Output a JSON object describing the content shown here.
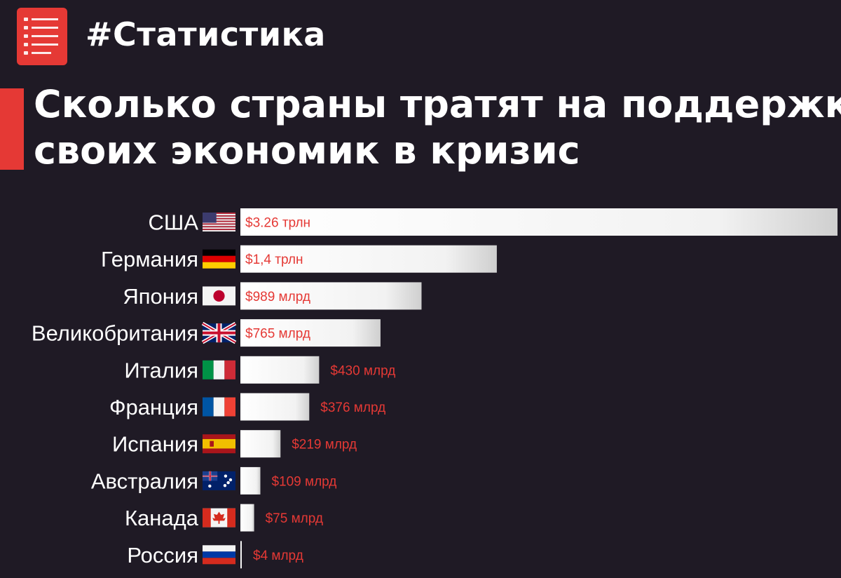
{
  "header": {
    "hashtag": "#Статистика",
    "icon": "list-document-icon",
    "icon_color": "#e53935"
  },
  "title_lines": [
    "Сколько страны тратят на поддержку",
    "своих экономик в кризис"
  ],
  "colors": {
    "background": "#1f1a25",
    "accent": "#e53935",
    "bar": "#f2f2f2",
    "text": "#ffffff"
  },
  "chart_data": {
    "type": "bar",
    "orientation": "horizontal",
    "unit": "billion USD",
    "categories": [
      "США",
      "Германия",
      "Япония",
      "Великобритания",
      "Италия",
      "Франция",
      "Испания",
      "Австралия",
      "Канада",
      "Россия"
    ],
    "flags": [
      "us-flag-icon",
      "germany-flag-icon",
      "japan-flag-icon",
      "uk-flag-icon",
      "italy-flag-icon",
      "france-flag-icon",
      "spain-flag-icon",
      "australia-flag-icon",
      "canada-flag-icon",
      "russia-flag-icon"
    ],
    "values": [
      3260,
      1400,
      989,
      765,
      430,
      376,
      219,
      109,
      75,
      4
    ],
    "value_labels": [
      "$3.26 трлн",
      "$1,4 трлн",
      "$989 млрд",
      "$765 млрд",
      "$430 млрд",
      "$376 млрд",
      "$219 млрд",
      "$109 млрд",
      "$75 млрд",
      "$4 млрд"
    ],
    "label_position": [
      "inside",
      "inside",
      "inside",
      "inside",
      "outside",
      "outside",
      "outside",
      "outside",
      "outside",
      "outside"
    ],
    "xlim": [
      0,
      3260
    ],
    "grid": false,
    "legend": "none"
  }
}
